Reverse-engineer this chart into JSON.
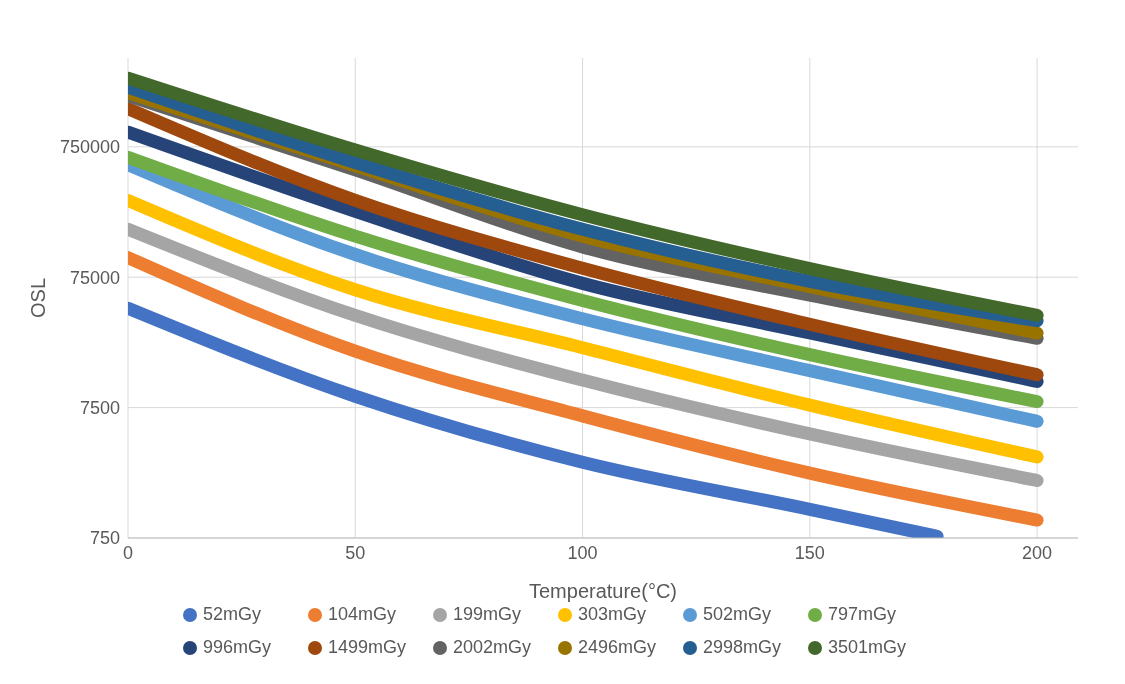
{
  "chart_data": {
    "type": "line",
    "xlabel": "Temperature(°C)",
    "ylabel": "OSL",
    "log": "y",
    "grid": true,
    "legend": "bottom",
    "marker": "none",
    "line_style": "solid",
    "xlim": [
      0,
      209
    ],
    "xticks": [
      0,
      50,
      100,
      150,
      200
    ],
    "ylim": [
      750,
      3600000
    ],
    "yticks": [
      750,
      7500,
      75000,
      750000
    ],
    "series": [
      {
        "name": "52mGy",
        "color": "#4472c4",
        "x": [
          0,
          50,
          100,
          150,
          178
        ],
        "values": [
          43400,
          9170,
          2860,
          1245,
          772
        ]
      },
      {
        "name": "104mGy",
        "color": "#ed7d31",
        "x": [
          0,
          50,
          100,
          150,
          200
        ],
        "values": [
          106000,
          20300,
          6480,
          2360,
          1030
        ]
      },
      {
        "name": "199mGy",
        "color": "#a5a5a5",
        "x": [
          0,
          50,
          100,
          150,
          200
        ],
        "values": [
          175000,
          38200,
          12200,
          4710,
          2070
        ]
      },
      {
        "name": "303mGy",
        "color": "#ffc000",
        "x": [
          0,
          50,
          100,
          150,
          200
        ],
        "values": [
          291000,
          60100,
          21600,
          7840,
          3140
        ]
      },
      {
        "name": "502mGy",
        "color": "#5b9bd5",
        "x": [
          0,
          50,
          100,
          150,
          200
        ],
        "values": [
          548000,
          112000,
          36000,
          14400,
          5890
        ]
      },
      {
        "name": "797mGy",
        "color": "#70ad47",
        "x": [
          0,
          50,
          100,
          150,
          200
        ],
        "values": [
          624000,
          155000,
          49700,
          19100,
          8340
        ]
      },
      {
        "name": "996mGy",
        "color": "#264478",
        "x": [
          0,
          50,
          100,
          150,
          200
        ],
        "values": [
          971000,
          240000,
          67300,
          28000,
          11900
        ]
      },
      {
        "name": "1499mGy",
        "color": "#9e480e",
        "x": [
          0,
          50,
          100,
          150,
          200
        ],
        "values": [
          1470000,
          291000,
          87800,
          32700,
          13400
        ]
      },
      {
        "name": "2002mGy",
        "color": "#636363",
        "x": [
          0,
          50,
          100,
          150,
          200
        ],
        "values": [
          1850000,
          499000,
          128000,
          54600,
          25500
        ]
      },
      {
        "name": "2496mGy",
        "color": "#997300",
        "x": [
          0,
          50,
          100,
          150,
          200
        ],
        "values": [
          1950000,
          536000,
          155000,
          63500,
          28000
        ]
      },
      {
        "name": "2998mGy",
        "color": "#255e91",
        "x": [
          0,
          50,
          100,
          150,
          200
        ],
        "values": [
          2150000,
          568000,
          175000,
          69800,
          34800
        ]
      },
      {
        "name": "3501mGy",
        "color": "#43682b",
        "x": [
          0,
          50,
          100,
          150,
          200
        ],
        "values": [
          2520000,
          708000,
          226000,
          87300,
          38200
        ]
      }
    ]
  }
}
